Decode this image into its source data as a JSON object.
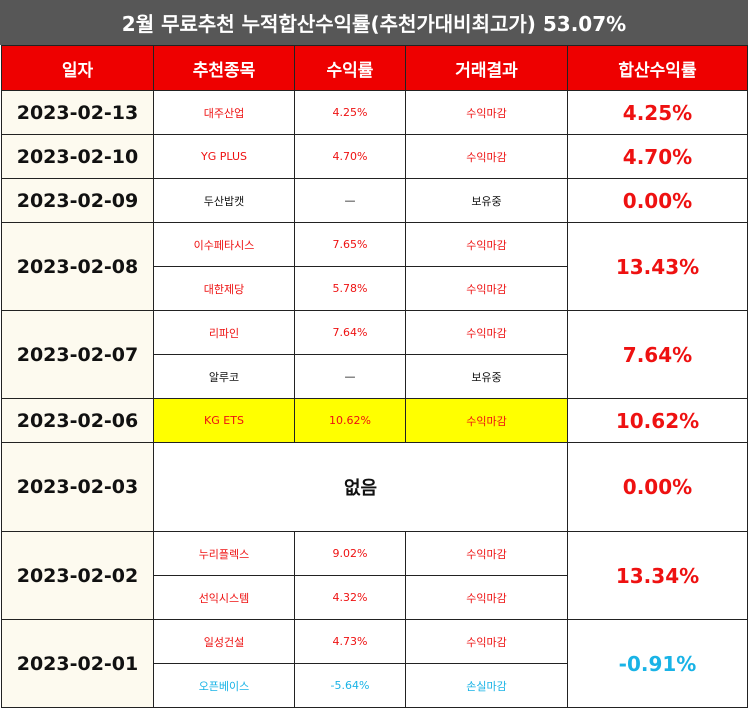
{
  "title": "2월 무료추천 누적합산수익률(추천가대비최고가) 53.07%",
  "headers": [
    "일자",
    "추천종목",
    "수익률",
    "거래결과",
    "합산수익률"
  ],
  "rows": [
    {
      "date": "2023-02-13",
      "total": "4.25%",
      "items": [
        {
          "name": "대주산업",
          "rate": "4.25%",
          "result": "수익마감"
        }
      ]
    },
    {
      "date": "2023-02-10",
      "total": "4.70%",
      "items": [
        {
          "name": "YG PLUS",
          "rate": "4.70%",
          "result": "수익마감"
        }
      ]
    },
    {
      "date": "2023-02-09",
      "total": "0.00%",
      "items": [
        {
          "name": "두산밥캣",
          "rate": "—",
          "result": "보유중"
        }
      ]
    },
    {
      "date": "2023-02-08",
      "total": "13.43%",
      "items": [
        {
          "name": "이수페타시스",
          "rate": "7.65%",
          "result": "수익마감"
        },
        {
          "name": "대한제당",
          "rate": "5.78%",
          "result": "수익마감"
        }
      ]
    },
    {
      "date": "2023-02-07",
      "total": "7.64%",
      "items": [
        {
          "name": "리파인",
          "rate": "7.64%",
          "result": "수익마감"
        },
        {
          "name": "알루코",
          "rate": "—",
          "result": "보유중"
        }
      ]
    },
    {
      "date": "2023-02-06",
      "total": "10.62%",
      "items": [
        {
          "name": "KG ETS",
          "rate": "10.62%",
          "result": "수익마감"
        }
      ]
    },
    {
      "date": "2023-02-03",
      "total": "0.00%",
      "none": "없음"
    },
    {
      "date": "2023-02-02",
      "total": "13.34%",
      "items": [
        {
          "name": "누리플렉스",
          "rate": "9.02%",
          "result": "수익마감"
        },
        {
          "name": "선익시스템",
          "rate": "4.32%",
          "result": "수익마감"
        }
      ]
    },
    {
      "date": "2023-02-01",
      "total": "-0.91%",
      "items": [
        {
          "name": "일성건설",
          "rate": "4.73%",
          "result": "수익마감"
        },
        {
          "name": "오픈베이스",
          "rate": "-5.64%",
          "result": "손실마감"
        }
      ]
    }
  ],
  "colors": {
    "header_bg": "#ee0000",
    "title_bg": "#575757",
    "profit": "#ee1111",
    "loss": "#19b3e6",
    "highlight": "#ffff00",
    "date_bg": "#fdfaef"
  }
}
